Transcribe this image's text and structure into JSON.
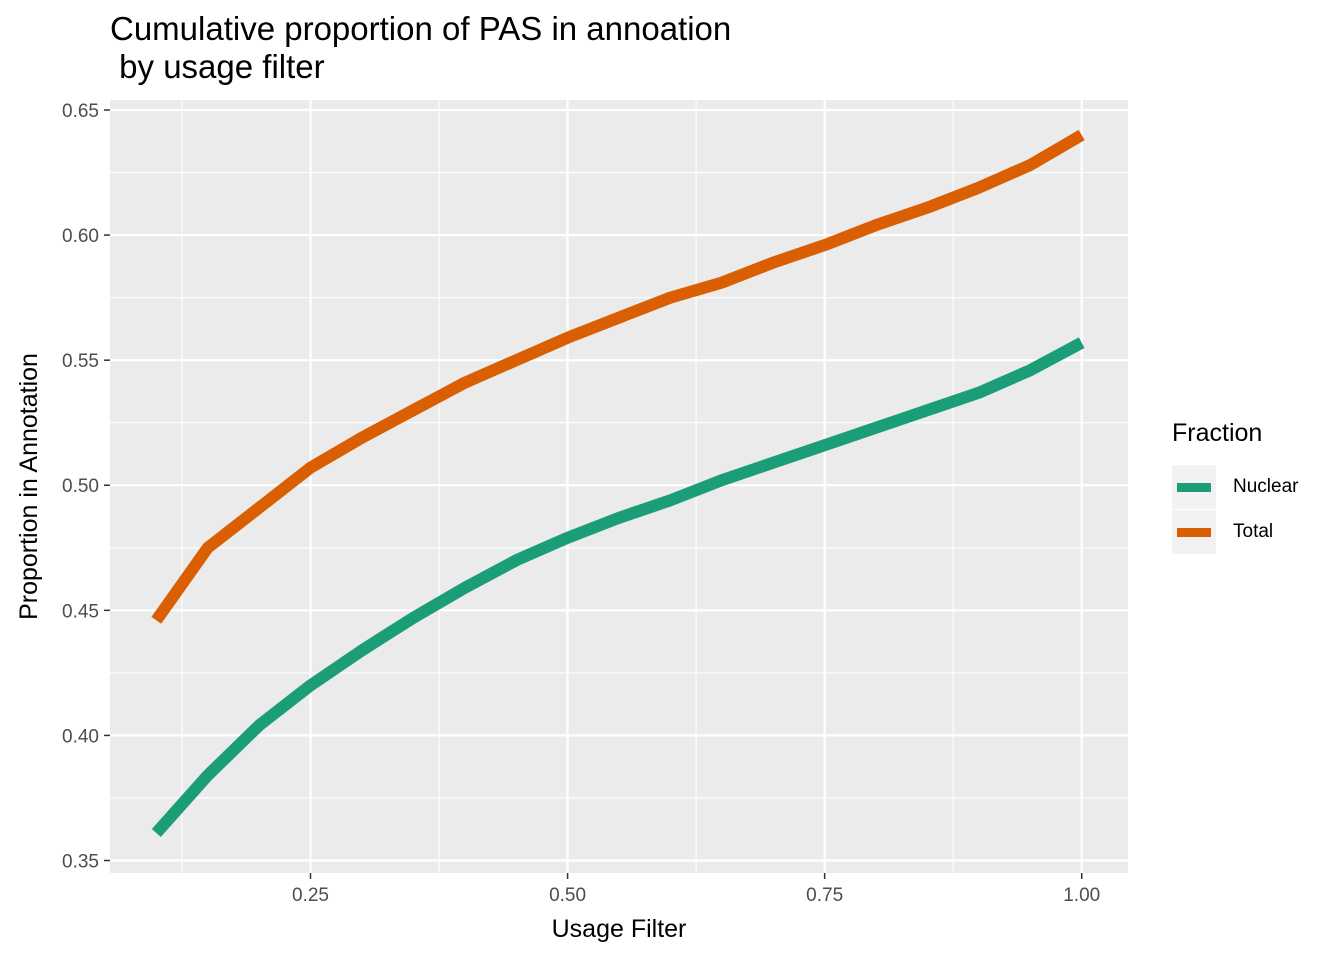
{
  "title": "Cumulative proportion of PAS in annoation\n by usage filter",
  "chart_data": {
    "type": "line",
    "xlabel": "Usage Filter",
    "ylabel": "Proportion in Annotation",
    "xlim": [
      0.055,
      1.045
    ],
    "ylim": [
      0.345,
      0.654
    ],
    "x_ticks": [
      0.25,
      0.5,
      0.75,
      1.0
    ],
    "x_tick_labels": [
      "0.25",
      "0.50",
      "0.75",
      "1.00"
    ],
    "y_ticks": [
      0.35,
      0.4,
      0.45,
      0.5,
      0.55,
      0.6,
      0.65
    ],
    "y_tick_labels": [
      "0.35",
      "0.40",
      "0.45",
      "0.50",
      "0.55",
      "0.60",
      "0.65"
    ],
    "grid": true,
    "legend": {
      "title": "Fraction",
      "position": "right"
    },
    "x": [
      0.1,
      0.15,
      0.2,
      0.25,
      0.3,
      0.35,
      0.4,
      0.45,
      0.5,
      0.55,
      0.6,
      0.65,
      0.7,
      0.75,
      0.8,
      0.85,
      0.9,
      0.95,
      1.0
    ],
    "series": [
      {
        "name": "Nuclear",
        "color": "#1b9e77",
        "values": [
          0.361,
          0.384,
          0.404,
          0.42,
          0.434,
          0.447,
          0.459,
          0.47,
          0.479,
          0.487,
          0.494,
          0.502,
          0.509,
          0.516,
          0.523,
          0.53,
          0.537,
          0.546,
          0.557
        ]
      },
      {
        "name": "Total",
        "color": "#d95f02",
        "values": [
          0.446,
          0.475,
          0.491,
          0.507,
          0.519,
          0.53,
          0.541,
          0.55,
          0.559,
          0.567,
          0.575,
          0.581,
          0.589,
          0.596,
          0.604,
          0.611,
          0.619,
          0.628,
          0.64
        ]
      }
    ]
  }
}
